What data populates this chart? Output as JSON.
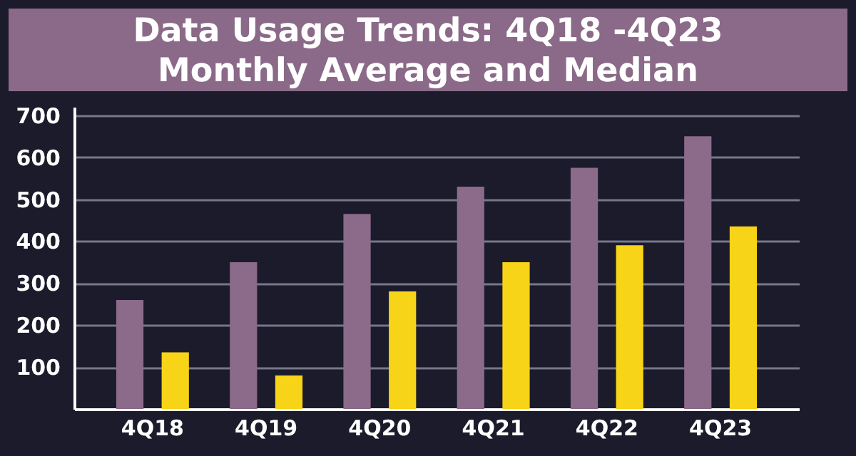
{
  "chart_data": {
    "type": "bar",
    "title": "Data Usage Trends: 4Q18 -4Q23 Monthly Average  and Median",
    "categories": [
      "4Q18",
      "4Q19",
      "4Q20",
      "4Q21",
      "4Q22",
      "4Q23"
    ],
    "series": [
      {
        "color": "#8b6a8a",
        "values": [
          260,
          350,
          465,
          530,
          575,
          650
        ]
      },
      {
        "color": "#f7d417",
        "values": [
          135,
          80,
          280,
          350,
          390,
          435
        ]
      }
    ],
    "ylim": [
      0,
      720
    ],
    "yticks": [
      100,
      200,
      300,
      400,
      500,
      600,
      700
    ],
    "grid": "y"
  }
}
